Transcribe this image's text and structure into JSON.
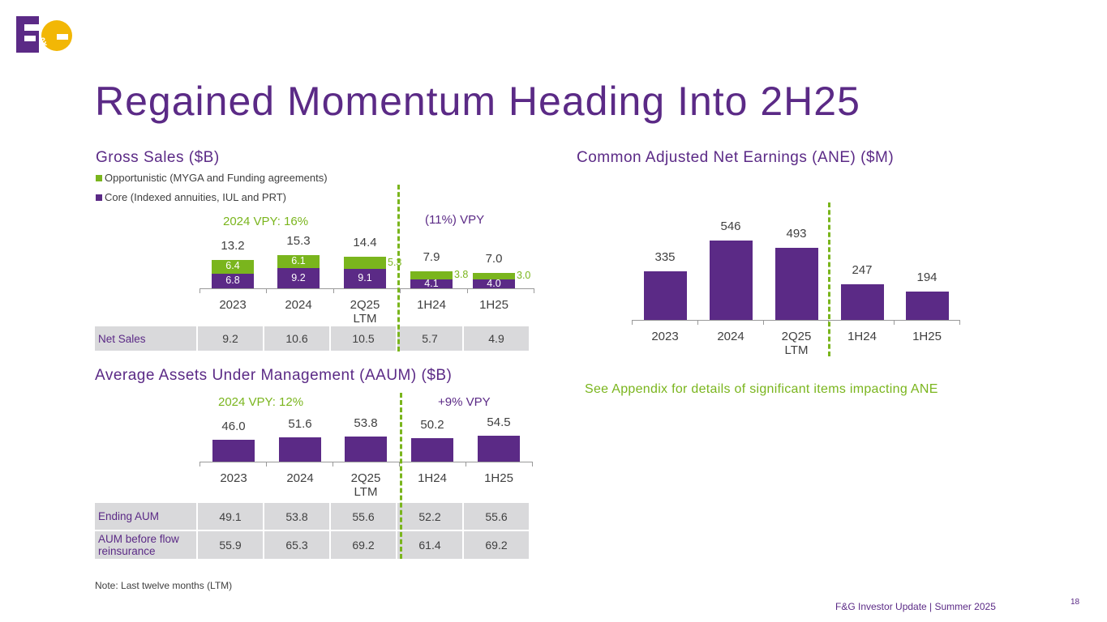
{
  "logo": {
    "text": "F&G",
    "colors": {
      "purple": "#5b2a86",
      "yellow": "#f2b705"
    }
  },
  "title": "Regained Momentum Heading Into 2H25",
  "categories": [
    "2023",
    "2024",
    "2Q25 LTM",
    "1H24",
    "1H25"
  ],
  "gross_sales": {
    "title": "Gross Sales ($B)",
    "legend": [
      "Opportunistic (MYGA and Funding agreements)",
      "Core (Indexed annuities, IUL and PRT)"
    ],
    "annotations": [
      "2024 VPY: 16%",
      "(11%) VPY"
    ],
    "net_sales_label": "Net Sales",
    "net_sales": [
      "9.2",
      "10.6",
      "10.5",
      "5.7",
      "4.9"
    ]
  },
  "aaum": {
    "title": "Average Assets Under Management (AAUM) ($B)",
    "annotations": [
      "2024 VPY: 12%",
      "+9% VPY"
    ],
    "rows": [
      {
        "label": "Ending AUM",
        "values": [
          "49.1",
          "53.8",
          "55.6",
          "52.2",
          "55.6"
        ]
      },
      {
        "label": "AUM before flow reinsurance",
        "values": [
          "55.9",
          "65.3",
          "69.2",
          "61.4",
          "69.2"
        ]
      }
    ]
  },
  "ane": {
    "title": "Common Adjusted Net Earnings (ANE) ($M)",
    "note": "See Appendix for details of significant items impacting ANE"
  },
  "chart_data": [
    {
      "type": "bar",
      "stacked": true,
      "title": "Gross Sales ($B)",
      "categories": [
        "2023",
        "2024",
        "2Q25 LTM",
        "1H24",
        "1H25"
      ],
      "series": [
        {
          "name": "Core (Indexed annuities, IUL and PRT)",
          "color": "#5b2a86",
          "values": [
            6.8,
            9.2,
            9.1,
            4.1,
            4.0
          ]
        },
        {
          "name": "Opportunistic (MYGA and Funding agreements)",
          "color": "#7ab51d",
          "values": [
            6.4,
            6.1,
            5.3,
            3.8,
            3.0
          ]
        }
      ],
      "totals": [
        13.2,
        15.3,
        14.4,
        7.9,
        7.0
      ],
      "legend": "top-left"
    },
    {
      "type": "bar",
      "title": "Common Adjusted Net Earnings (ANE) ($M)",
      "categories": [
        "2023",
        "2024",
        "2Q25 LTM",
        "1H24",
        "1H25"
      ],
      "values": [
        335,
        546,
        493,
        247,
        194
      ],
      "color": "#5b2a86"
    },
    {
      "type": "bar",
      "title": "Average Assets Under Management (AAUM) ($B)",
      "categories": [
        "2023",
        "2024",
        "2Q25 LTM",
        "1H24",
        "1H25"
      ],
      "values": [
        46.0,
        51.6,
        53.8,
        50.2,
        54.5
      ],
      "color": "#5b2a86"
    }
  ],
  "footer": {
    "note": "Note: Last twelve months (LTM)",
    "source": "F&G Investor Update |  Summer 2025",
    "page": "18"
  }
}
